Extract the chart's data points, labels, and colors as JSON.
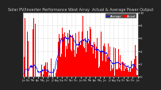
{
  "title": "Solar PV/Inverter Performance West Array  Actual & Average Power Output",
  "title_fontsize": 3.5,
  "background_color": "#222222",
  "plot_bg_color": "#ffffff",
  "grid_color": "#aaaaaa",
  "bar_color": "#ff0000",
  "avg_color": "#0000ff",
  "y_max": 10,
  "n_points": 520,
  "legend_actual": "Actual",
  "legend_avg": "Average",
  "x_label_fontsize": 2.2,
  "y_label_fontsize": 2.8,
  "title_color": "#cccccc"
}
